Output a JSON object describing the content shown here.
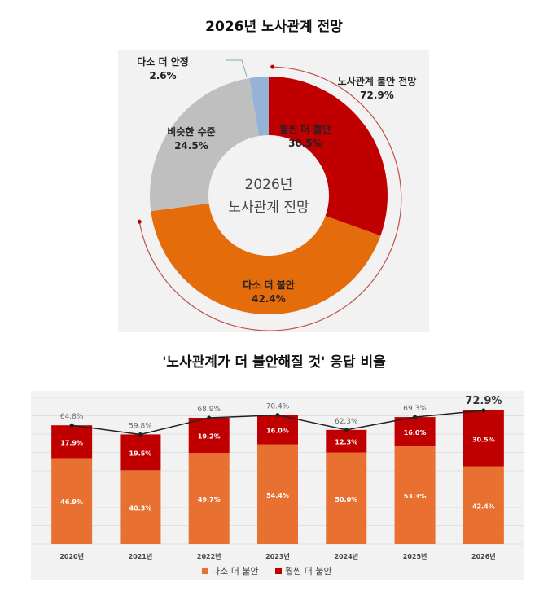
{
  "chart_data": [
    {
      "type": "pie",
      "title": "2026년 노사관계 전망",
      "center_label": [
        "2026년",
        "노사관계 전망"
      ],
      "slices": [
        {
          "label": "훨씬 더 불안",
          "value": 30.5,
          "color": "#c00000"
        },
        {
          "label": "다소 더 불안",
          "value": 42.4,
          "color": "#e46c0a"
        },
        {
          "label": "비슷한 수준",
          "value": 24.5,
          "color": "#bfbfbf"
        },
        {
          "label": "다소 더 안정",
          "value": 2.6,
          "color": "#95b3d7"
        }
      ],
      "annotation": {
        "label": "노사관계 불안 전망",
        "value": "72.9%"
      }
    },
    {
      "type": "bar",
      "stacked": true,
      "title": "'노사관계가 더 불안해질 것' 응답 비율",
      "categories": [
        "2020년",
        "2021년",
        "2022년",
        "2023년",
        "2024년",
        "2025년",
        "2026년"
      ],
      "series": [
        {
          "name": "다소 더 불안",
          "color": "#e87132",
          "values": [
            46.9,
            40.3,
            49.7,
            54.4,
            50.0,
            53.3,
            42.4
          ]
        },
        {
          "name": "훨씬 더 불안",
          "color": "#c00000",
          "values": [
            17.9,
            19.5,
            19.2,
            16.0,
            12.3,
            16.0,
            30.5
          ]
        }
      ],
      "line": {
        "name": "합계",
        "values": [
          64.8,
          59.8,
          68.9,
          70.4,
          62.3,
          69.3,
          72.9
        ]
      },
      "ylim": [
        0,
        80
      ],
      "grid": true,
      "legend": "bottom"
    }
  ]
}
